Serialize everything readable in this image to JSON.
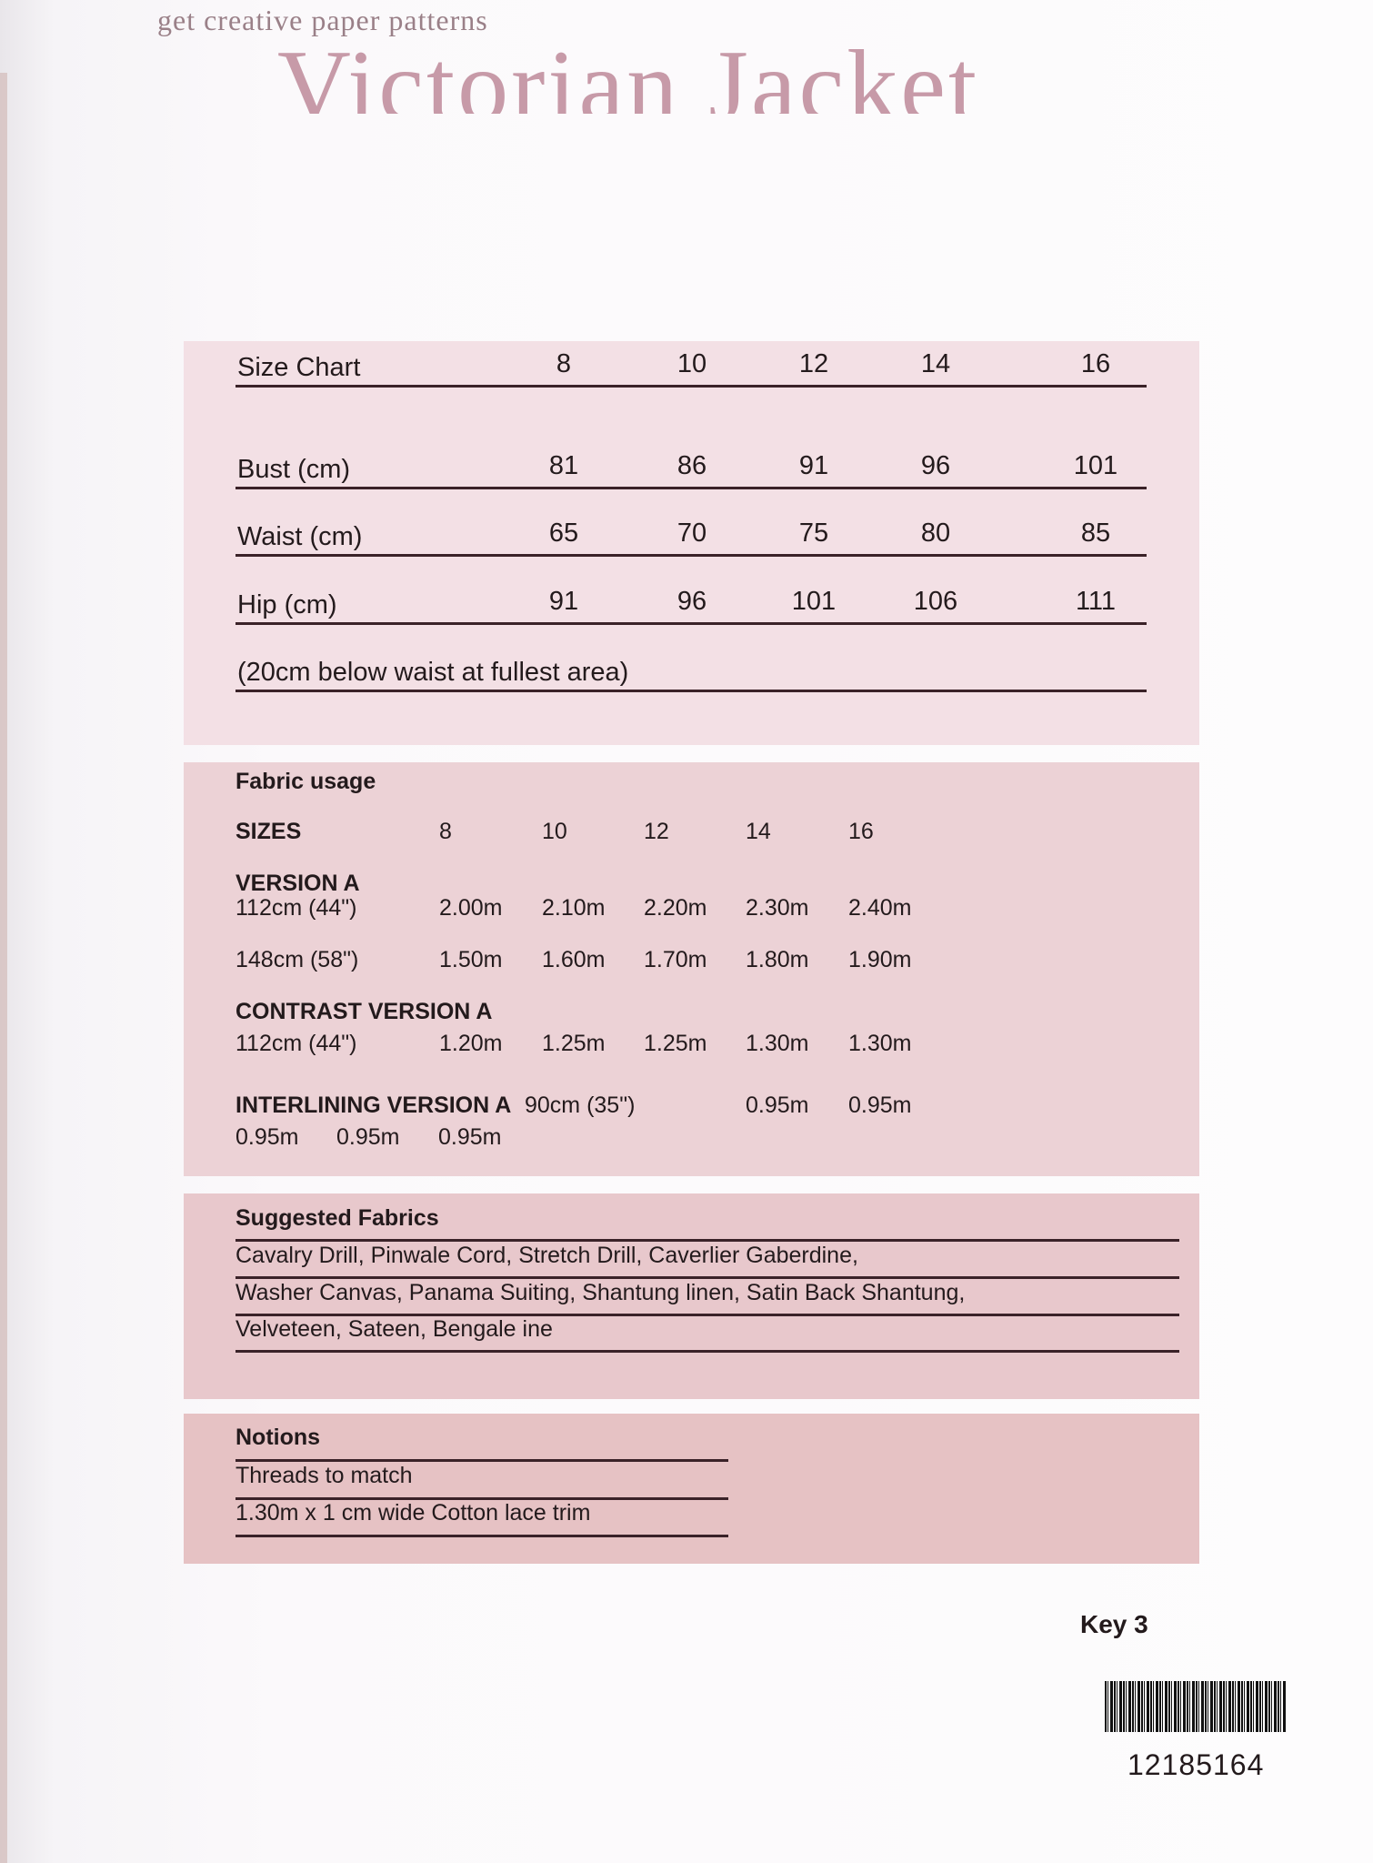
{
  "header": {
    "brand": "get creative paper patterns",
    "title": "Victorian Jacket"
  },
  "size_chart": {
    "heading": "Size Chart",
    "sizes": [
      "8",
      "10",
      "12",
      "14",
      "16"
    ],
    "rows": [
      {
        "label": "Bust (cm)",
        "values": [
          "81",
          "86",
          "91",
          "96",
          "101"
        ]
      },
      {
        "label": "Waist (cm)",
        "values": [
          "65",
          "70",
          "75",
          "80",
          "85"
        ]
      },
      {
        "label": "Hip (cm)",
        "values": [
          "91",
          "96",
          "101",
          "106",
          "111"
        ]
      }
    ],
    "note": "(20cm below waist at fullest area)"
  },
  "fabric_usage": {
    "heading": "Fabric usage",
    "sizes_label": "SIZES",
    "sizes": [
      "8",
      "10",
      "12",
      "14",
      "16"
    ],
    "version_a": "VERSION A",
    "rows": [
      {
        "label": "112cm (44\")",
        "values": [
          "2.00m",
          "2.10m",
          "2.20m",
          "2.30m",
          "2.40m"
        ]
      },
      {
        "label": "148cm (58\")",
        "values": [
          "1.50m",
          "1.60m",
          "1.70m",
          "1.80m",
          "1.90m"
        ]
      }
    ],
    "contrast": "CONTRAST VERSION A",
    "contrast_row": {
      "label": "112cm (44\")",
      "values": [
        "1.20m",
        "1.25m",
        "1.25m",
        "1.30m",
        "1.30m"
      ]
    },
    "interlining": "INTERLINING VERSION A",
    "interlining_width": "90cm (35\")",
    "interlining_values_right": [
      "0.95m",
      "0.95m"
    ],
    "interlining_values_left": [
      "0.95m",
      "0.95m",
      "0.95m"
    ]
  },
  "suggested_fabrics": {
    "heading": "Suggested Fabrics",
    "lines": [
      "Cavalry Drill, Pinwale Cord, Stretch Drill, Caverlier Gaberdine,",
      "Washer Canvas, Panama Suiting, Shantung linen, Satin Back Shantung,",
      "Velveteen, Sateen, Bengale ine"
    ]
  },
  "notions": {
    "heading": "Notions",
    "lines": [
      "Threads to match",
      "1.30m x 1 cm wide Cotton lace trim"
    ]
  },
  "footer": {
    "key": "Key 3",
    "barcode_number": "12185164"
  },
  "colors": {
    "title": "#c79aa8",
    "panel1": "#f3e0e5",
    "panel2": "#ecd2d6",
    "panel3": "#e8c8cc",
    "panel4": "#e6c2c4"
  }
}
